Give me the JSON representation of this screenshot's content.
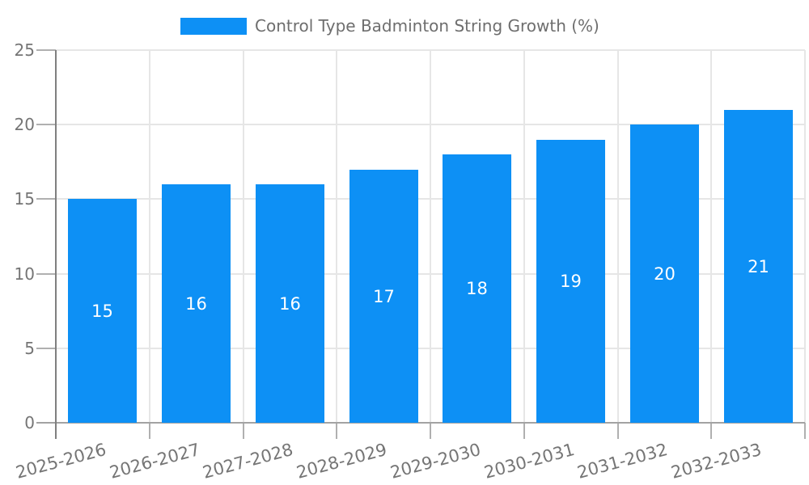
{
  "chart_data": {
    "type": "bar",
    "title": "Control Type Badminton String Growth (%)",
    "categories": [
      "2025-2026",
      "2026-2027",
      "2027-2028",
      "2028-2029",
      "2029-2030",
      "2030-2031",
      "2031-2032",
      "2032-2033"
    ],
    "values": [
      15,
      16,
      16,
      17,
      18,
      19,
      20,
      21
    ],
    "series": [
      {
        "name": "Control Type Badminton String Growth (%)",
        "values": [
          15,
          16,
          16,
          17,
          18,
          19,
          20,
          21
        ]
      }
    ],
    "xlabel": "",
    "ylabel": "",
    "ylim": [
      0,
      25
    ],
    "yticks": [
      0,
      5,
      10,
      15,
      20,
      25
    ],
    "grid": true,
    "legend_position": "top-center",
    "x_label_rotation_deg": -15,
    "value_labels_position": "center-inside",
    "colors": {
      "bar": "#0d90f5",
      "value_label_text": "#ffffff",
      "axis_text": "#757575",
      "legend_text": "#6e6e6e",
      "gridline": "#e6e6e6",
      "tick": "#b0b0b0",
      "y_axis_line": "#7f7f7f",
      "x_axis_line": "#a3a3a3",
      "background": "#ffffff"
    }
  }
}
